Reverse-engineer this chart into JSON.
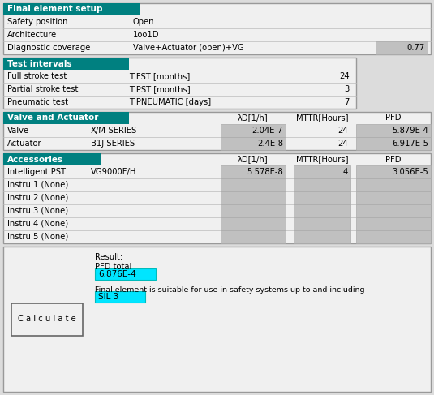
{
  "bg_color": "#dcdcdc",
  "light_gray": "#f0f0f0",
  "med_gray": "#c0c0c0",
  "teal": "#008080",
  "cyan": "#00e5ff",
  "section1_title": "Final element setup",
  "s1_rows": [
    [
      "Safety position",
      "Open",
      ""
    ],
    [
      "Architecture",
      "1oo1D",
      ""
    ],
    [
      "Diagnostic coverage",
      "Valve+Actuator (open)+VG",
      "0.77"
    ]
  ],
  "section2_title": "Test intervals",
  "s2_rows": [
    [
      "Full stroke test",
      "TIFST [months]",
      "24"
    ],
    [
      "Partial stroke test",
      "TIPST [months]",
      "3"
    ],
    [
      "Pneumatic test",
      "TIPNEUMATIC [days]",
      "7"
    ]
  ],
  "section3_title": "Valve and Actuator",
  "s3_headers": [
    "λD[1/h]",
    "MTTR[Hours]",
    "PFD"
  ],
  "s3_rows": [
    [
      "Valve",
      "X/M-SERIES",
      "2.04E-7",
      "24",
      "5.879E-4"
    ],
    [
      "Actuator",
      "B1J-SERIES",
      "2.4E-8",
      "24",
      "6.917E-5"
    ]
  ],
  "section4_title": "Accessories",
  "s4_headers": [
    "λD[1/h]",
    "MTTR[Hours]",
    "PFD"
  ],
  "s4_rows": [
    [
      "Intelligent PST",
      "VG9000F/H",
      "5.578E-8",
      "4",
      "3.056E-5"
    ],
    [
      "Instru 1 (None)",
      "",
      "",
      "",
      ""
    ],
    [
      "Instru 2 (None)",
      "",
      "",
      "",
      ""
    ],
    [
      "Instru 3 (None)",
      "",
      "",
      "",
      ""
    ],
    [
      "Instru 4 (None)",
      "",
      "",
      "",
      ""
    ],
    [
      "Instru 5 (None)",
      "",
      "",
      "",
      ""
    ]
  ],
  "result_label": "Result:",
  "pfd_total_label": "PFD total",
  "pfd_value": "6.876E-4",
  "sil_text": "Final element is suitable for use in safety systems up to and including",
  "sil_value": "SIL 3",
  "calc_button": "C a l c u l a t e"
}
